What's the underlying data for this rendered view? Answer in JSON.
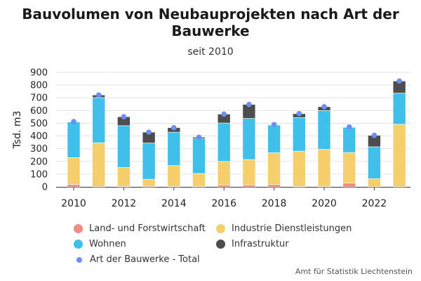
{
  "chart_data": {
    "type": "bar",
    "stacked": true,
    "title": "Bauvolumen von Neubauprojekten nach Art der Bauwerke",
    "subtitle": "seit 2010",
    "ylabel": "Tsd. m3",
    "ylim": [
      0,
      900
    ],
    "yticks": [
      0,
      100,
      200,
      300,
      400,
      500,
      600,
      700,
      800,
      900
    ],
    "x_tick_labels": [
      "2010",
      "2012",
      "2014",
      "2016",
      "2018",
      "2020",
      "2022"
    ],
    "categories": [
      "2010",
      "2011",
      "2012",
      "2013",
      "2014",
      "2015",
      "2016",
      "2017",
      "2018",
      "2019",
      "2020",
      "2021",
      "2022",
      "2023"
    ],
    "series": [
      {
        "name": "Land- und Forstwirtschaft",
        "color": "#f28b82",
        "values": [
          20,
          2,
          3,
          5,
          3,
          5,
          15,
          15,
          18,
          3,
          3,
          30,
          2,
          2
        ]
      },
      {
        "name": "Industrie Dienstleistungen",
        "color": "#f5cf6b",
        "values": [
          210,
          345,
          150,
          55,
          165,
          100,
          185,
          200,
          250,
          278,
          292,
          240,
          63,
          490
        ]
      },
      {
        "name": "Wohnen",
        "color": "#3ec0ea",
        "values": [
          280,
          355,
          328,
          285,
          262,
          275,
          302,
          323,
          218,
          264,
          305,
          198,
          250,
          245
        ]
      },
      {
        "name": "Infrastruktur",
        "color": "#4d4d4d",
        "values": [
          3,
          20,
          70,
          85,
          35,
          10,
          70,
          110,
          3,
          30,
          30,
          3,
          90,
          95
        ]
      }
    ],
    "total_series": {
      "name": "Art der Bauwerke - Total",
      "color": "#6b8ff2",
      "values": [
        513,
        722,
        551,
        430,
        465,
        390,
        572,
        648,
        489,
        575,
        630,
        471,
        405,
        832
      ]
    },
    "grid": true,
    "legend_position": "bottom"
  },
  "source": "Amt für Statistik Liechtenstein"
}
